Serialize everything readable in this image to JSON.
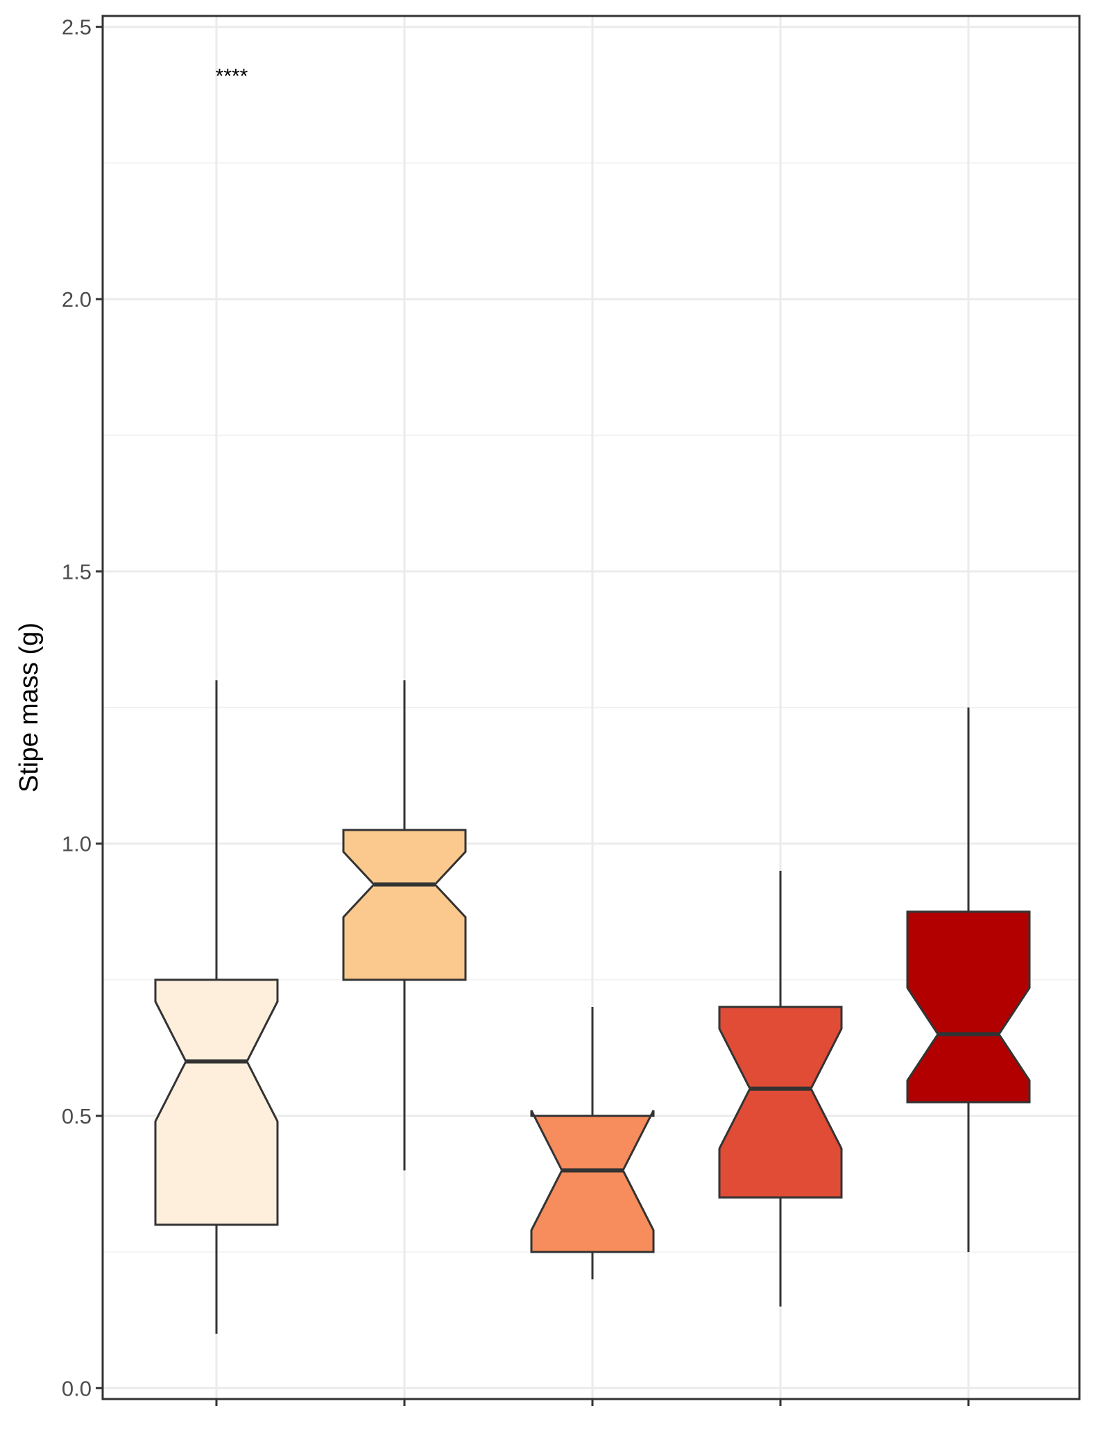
{
  "chart_data": {
    "type": "boxplot",
    "title": "",
    "xlabel": "",
    "ylabel": "Stipe mass (g)",
    "ylim": [
      -0.02,
      2.52
    ],
    "yticks": [
      0.0,
      0.5,
      1.0,
      1.5,
      2.0,
      2.5
    ],
    "ytick_labels": [
      "0.0",
      "0.5",
      "1.0",
      "1.5",
      "2.0",
      "2.5"
    ],
    "grid": true,
    "notched": true,
    "annotation": "****",
    "annotation_position": {
      "category_index": 0,
      "y": 2.41
    },
    "boxes": [
      {
        "whisker_low": 0.1,
        "q1": 0.3,
        "median": 0.6,
        "q3": 0.75,
        "whisker_high": 1.3,
        "notch_low": 0.49,
        "notch_high": 0.71,
        "color": "#fdefdc"
      },
      {
        "whisker_low": 0.4,
        "q1": 0.75,
        "median": 0.925,
        "q3": 1.025,
        "whisker_high": 1.3,
        "notch_low": 0.865,
        "notch_high": 0.985,
        "color": "#fbc98d"
      },
      {
        "whisker_low": 0.2,
        "q1": 0.25,
        "median": 0.4,
        "q3": 0.5,
        "whisker_high": 0.7,
        "notch_low": 0.29,
        "notch_high": 0.51,
        "color": "#f78c5c"
      },
      {
        "whisker_low": 0.15,
        "q1": 0.35,
        "median": 0.55,
        "q3": 0.7,
        "whisker_high": 0.95,
        "notch_low": 0.44,
        "notch_high": 0.66,
        "color": "#e04c36"
      },
      {
        "whisker_low": 0.25,
        "q1": 0.525,
        "median": 0.65,
        "q3": 0.875,
        "whisker_high": 1.25,
        "notch_low": 0.565,
        "notch_high": 0.735,
        "color": "#b20000"
      }
    ]
  }
}
